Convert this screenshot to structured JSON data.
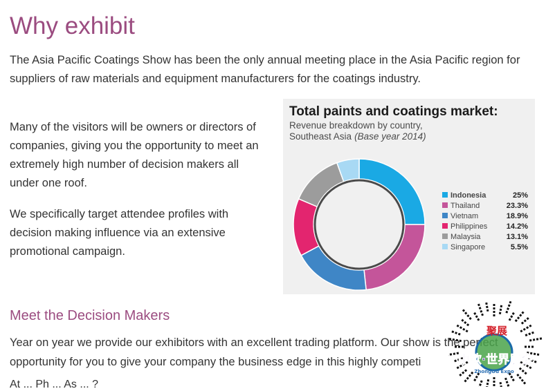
{
  "page": {
    "title": "Why exhibit",
    "intro": "The Asia Pacific Coatings Show has been the only annual meeting place in the Asia Pacific region for suppliers of raw materials and equipment manufacturers for the coatings industry.",
    "para1": "Many of the visitors will be owners or directors of companies, giving you the opportunity to meet an extremely high number of decision makers all under one roof.",
    "para2": "We specifically target attendee profiles with decision making influence via an extensive promotional campaign.",
    "section2_title": "Meet the Decision Makers",
    "section2_body": "Year on year we provide our exhibitors with an excellent trading platform. Our show is the perfect opportunity for you to give your company the business edge in this highly competi",
    "cut_text": "At ... Ph ... As ... ?"
  },
  "chart_data": {
    "type": "pie",
    "variant": "donut",
    "title": "Total paints and coatings market:",
    "subtitle_lines": [
      "Revenue breakdown by country,",
      "Southeast Asia"
    ],
    "subtitle_italic": "(Base year 2014)",
    "categories": [
      "Indonesia",
      "Thailand",
      "Vietnam",
      "Philippines",
      "Malaysia",
      "Singapore"
    ],
    "values": [
      25,
      23.3,
      18.9,
      14.2,
      13.1,
      5.5
    ],
    "value_labels": [
      "25%",
      "23.3%",
      "18.9%",
      "14.2%",
      "13.1%",
      "5.5%"
    ],
    "colors": [
      "#1aa9e4",
      "#c4559a",
      "#3f86c6",
      "#e3256f",
      "#9c9c9c",
      "#a8d9f4"
    ],
    "legend_position": "right"
  },
  "watermark": {
    "line1": "聚展",
    "line2": "中欧·世界展会",
    "line3": "ZhongOu Expo"
  }
}
